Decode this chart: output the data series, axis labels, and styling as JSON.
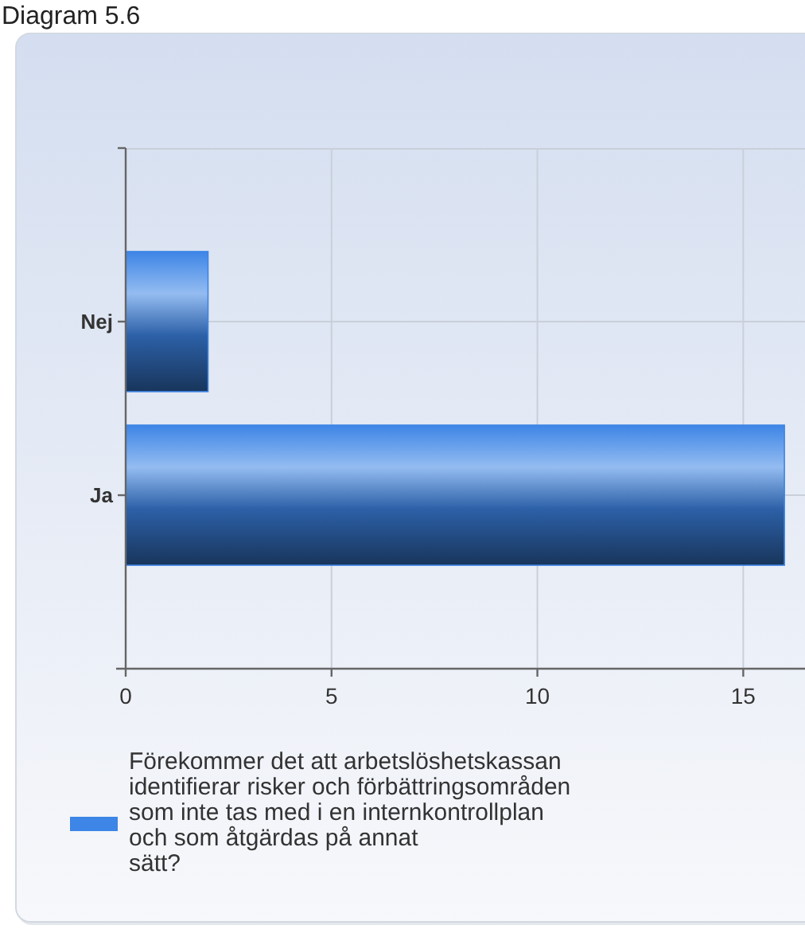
{
  "chart_data": {
    "type": "bar",
    "title": "Diagram 5.6",
    "orientation": "horizontal",
    "categories": [
      "Nej",
      "Ja"
    ],
    "series": [
      {
        "name": "Förekommer det att arbetslöshetskassan\nidentifierar risker och förbättringsområden\nsom inte tas med i en internkontrollplan\noch som åtgärdas på annat\nsätt?",
        "color": "#3d85e6",
        "values": [
          2,
          16
        ]
      }
    ],
    "xlim": [
      0,
      16.5
    ],
    "xticks": [
      0,
      5,
      10,
      15
    ],
    "grid": true,
    "legend": "bottom"
  }
}
